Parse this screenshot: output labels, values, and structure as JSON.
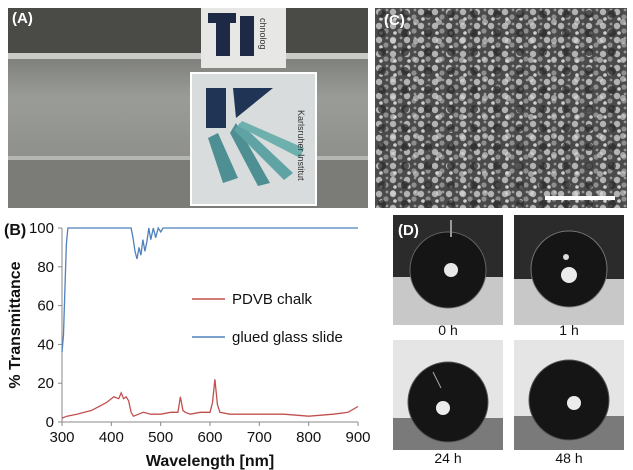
{
  "panels": {
    "a": "(A)",
    "b": "(B)",
    "c": "(C)",
    "d": "(D)"
  },
  "photo_a_text": {
    "top_label": "chnolog",
    "bottom_label": "Karlsruher Institut"
  },
  "chart_data": {
    "type": "line",
    "xlabel": "Wavelength [nm]",
    "ylabel": "% Transmittance",
    "xlim": [
      300,
      900
    ],
    "ylim": [
      0,
      100
    ],
    "xticks": [
      300,
      400,
      500,
      600,
      700,
      800,
      900
    ],
    "yticks": [
      0,
      20,
      40,
      60,
      80,
      100
    ],
    "grid": false,
    "legend_position": "center-right",
    "series": [
      {
        "name": "PDVB chalk",
        "color": "#c0504d",
        "x": [
          300,
          310,
          330,
          360,
          390,
          405,
          415,
          420,
          425,
          430,
          435,
          440,
          445,
          455,
          465,
          480,
          500,
          520,
          535,
          540,
          545,
          550,
          560,
          580,
          600,
          605,
          610,
          615,
          620,
          640,
          660,
          700,
          750,
          800,
          850,
          880,
          900
        ],
        "y": [
          2,
          3,
          4,
          6,
          10,
          13,
          12,
          15,
          12,
          13,
          11,
          5,
          3,
          4,
          5,
          4,
          4,
          5,
          5,
          13,
          6,
          5,
          4,
          5,
          5,
          10,
          22,
          9,
          5,
          4,
          4,
          4,
          4,
          3,
          4,
          5,
          8
        ]
      },
      {
        "name": "glued glass slide",
        "color": "#4f81bd",
        "x": [
          300,
          303,
          306,
          309,
          312,
          316,
          320,
          400,
          440,
          444,
          448,
          452,
          456,
          460,
          464,
          468,
          472,
          476,
          480,
          485,
          490,
          495,
          500,
          505,
          510,
          900
        ],
        "y": [
          36,
          45,
          70,
          92,
          100,
          100,
          100,
          100,
          100,
          95,
          88,
          84,
          90,
          86,
          94,
          88,
          93,
          100,
          94,
          100,
          95,
          100,
          98,
          100,
          100,
          100
        ]
      }
    ]
  },
  "contact_angle_times": [
    "0 h",
    "1 h",
    "24 h",
    "48 h"
  ]
}
